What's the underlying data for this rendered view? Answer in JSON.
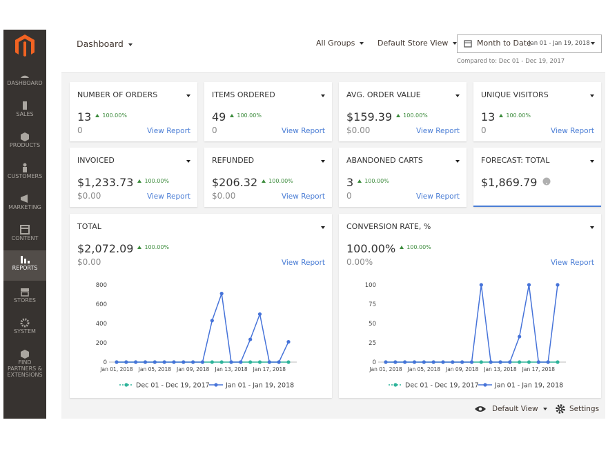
{
  "sidebar": {
    "menu": [
      "DASHBOARD",
      "SALES",
      "PRODUCTS",
      "CUSTOMERS",
      "MARKETING",
      "CONTENT",
      "REPORTS",
      "STORES",
      "SYSTEM",
      "FIND PARTNERS & EXTENSIONS"
    ]
  },
  "header": {
    "title": "Dashboard",
    "groups": "All Groups",
    "store_view": "Default Store View",
    "period": "Month to Date",
    "range": "Jan 01 - Jan 19, 2018",
    "compared": "Compared to: Dec 01 - Dec 19, 2017"
  },
  "cards": [
    {
      "label": "NUMBER OF ORDERS",
      "value": "13",
      "change": "100.00%",
      "previous": "0",
      "link": "View Report"
    },
    {
      "label": "ITEMS ORDERED",
      "value": "49",
      "change": "100.00%",
      "previous": "0",
      "link": "View Report"
    },
    {
      "label": "AVG. ORDER VALUE",
      "value": "$159.39",
      "change": "100.00%",
      "previous": "$0.00",
      "link": "View Report"
    },
    {
      "label": "UNIQUE VISITORS",
      "value": "13",
      "change": "100.00%",
      "previous": "0",
      "link": "View Report"
    },
    {
      "label": "INVOICED",
      "value": "$1,233.73",
      "change": "100.00%",
      "previous": "$0.00",
      "link": "View Report"
    },
    {
      "label": "REFUNDED",
      "value": "$206.32",
      "change": "100.00%",
      "previous": "$0.00",
      "link": "View Report"
    },
    {
      "label": "ABANDONED CARTS",
      "value": "3",
      "change": "100.00%",
      "previous": "0",
      "link": "View Report"
    },
    {
      "label": "FORECAST: TOTAL",
      "value": "$1,869.79"
    }
  ],
  "charts": [
    {
      "type": "line",
      "label": "TOTAL",
      "value": "$2,072.09",
      "change": "100.00%",
      "previous": "$0.00",
      "link": "View Report",
      "categories": [
        "Jan 01, 2018",
        null,
        null,
        null,
        "Jan 05, 2018",
        null,
        null,
        null,
        "Jan 09, 2018",
        null,
        null,
        null,
        "Jan 13, 2018",
        null,
        null,
        null,
        "Jan 17, 2018",
        null,
        null
      ],
      "ylim": [
        0,
        800
      ],
      "yticks": [
        0,
        200,
        400,
        600,
        800
      ],
      "series": [
        {
          "name": "Dec 01 - Dec 19, 2017",
          "color": "#2db39a",
          "values": [
            0,
            0,
            0,
            0,
            0,
            0,
            0,
            0,
            0,
            0,
            0,
            0,
            0,
            0,
            0,
            0,
            0,
            0,
            0
          ]
        },
        {
          "name": "Jan 01 - Jan 19, 2018",
          "color": "#4673d9",
          "values": [
            0,
            0,
            0,
            0,
            0,
            0,
            0,
            0,
            0,
            0,
            430,
            710,
            0,
            0,
            235,
            497,
            0,
            0,
            210
          ]
        }
      ]
    },
    {
      "type": "line",
      "label": "CONVERSION RATE, %",
      "value": "100.00%",
      "change": "100.00%",
      "previous": "0.00%",
      "link": "View Report",
      "categories": [
        "Jan 01, 2018",
        null,
        null,
        null,
        "Jan 05, 2018",
        null,
        null,
        null,
        "Jan 09, 2018",
        null,
        null,
        null,
        "Jan 13, 2018",
        null,
        null,
        null,
        "Jan 17, 2018",
        null,
        null
      ],
      "ylim": [
        0,
        100
      ],
      "yticks": [
        0,
        25,
        50,
        75,
        100
      ],
      "series": [
        {
          "name": "Dec 01 - Dec 19, 2017",
          "color": "#2db39a",
          "values": [
            0,
            0,
            0,
            0,
            0,
            0,
            0,
            0,
            0,
            0,
            0,
            0,
            0,
            0,
            0,
            0,
            0,
            0,
            0
          ]
        },
        {
          "name": "Jan 01 - Jan 19, 2018",
          "color": "#4673d9",
          "values": [
            0,
            0,
            0,
            0,
            0,
            0,
            0,
            0,
            0,
            0,
            100,
            0,
            0,
            0,
            33,
            100,
            0,
            0,
            100
          ]
        }
      ]
    }
  ],
  "footer": {
    "view": "Default View",
    "settings": "Settings"
  }
}
